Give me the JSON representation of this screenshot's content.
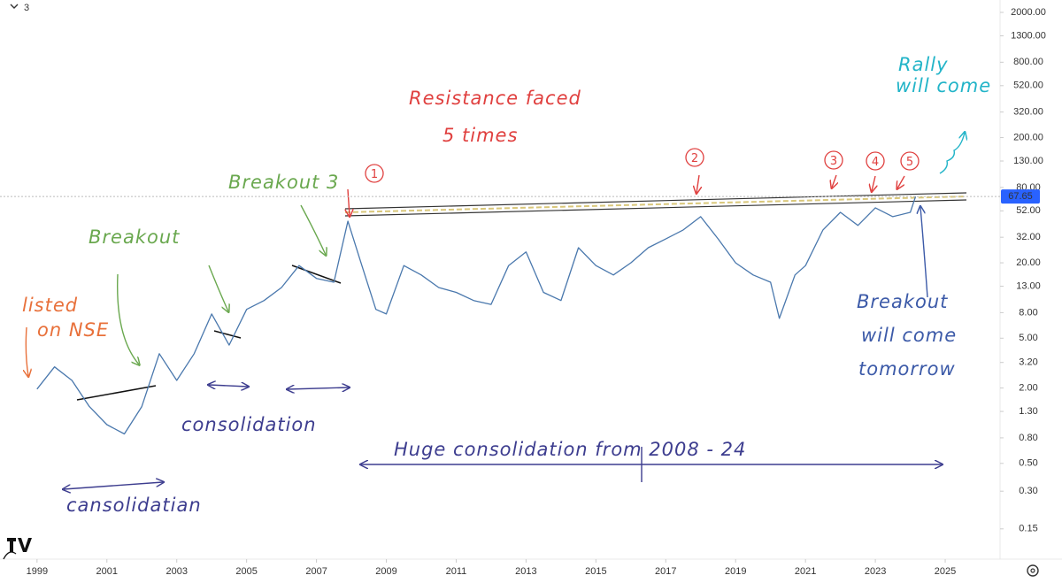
{
  "ui": {
    "interval_selector": "3"
  },
  "chart_data": {
    "type": "line",
    "log_scale": true,
    "x": [
      1999.0,
      1999.5,
      2000.0,
      2000.5,
      2001.0,
      2001.5,
      2002.0,
      2002.5,
      2003.0,
      2003.5,
      2004.0,
      2004.5,
      2005.0,
      2005.5,
      2006.0,
      2006.5,
      2007.0,
      2007.5,
      2007.9,
      2008.3,
      2008.7,
      2009.0,
      2009.5,
      2010.0,
      2010.5,
      2011.0,
      2011.5,
      2012.0,
      2012.5,
      2013.0,
      2013.5,
      2014.0,
      2014.5,
      2015.0,
      2015.5,
      2016.0,
      2016.5,
      2017.0,
      2017.5,
      2018.0,
      2018.5,
      2019.0,
      2019.5,
      2020.0,
      2020.25,
      2020.7,
      2021.0,
      2021.5,
      2022.0,
      2022.5,
      2023.0,
      2023.5,
      2024.0,
      2024.15
    ],
    "series": [
      {
        "color": "#4a78ad",
        "values": [
          1.96,
          2.95,
          2.3,
          1.42,
          1.02,
          0.86,
          1.42,
          3.76,
          2.3,
          3.76,
          7.8,
          4.4,
          8.5,
          10,
          12.7,
          19,
          15,
          14,
          43,
          19,
          8.5,
          7.8,
          19,
          16,
          12.7,
          11.6,
          10,
          9.3,
          19,
          24.4,
          11.6,
          10,
          26.4,
          19,
          16,
          20,
          26.4,
          31,
          36.6,
          46.7,
          31,
          20,
          16,
          14,
          7.2,
          16,
          19,
          36.6,
          50.6,
          39.8,
          55,
          46.7,
          50.6,
          67.65
        ]
      }
    ],
    "last_price": 67.65,
    "xlim": [
      1997.94,
      2026.57
    ],
    "xticks": [
      1999,
      2001,
      2003,
      2005,
      2007,
      2009,
      2011,
      2013,
      2015,
      2017,
      2019,
      2021,
      2023,
      2025
    ],
    "ylim": [
      0.086,
      2512
    ],
    "yticks": [
      {
        "value": 2000,
        "label": "2000.00"
      },
      {
        "value": 1300,
        "label": "1300.00"
      },
      {
        "value": 800,
        "label": "800.00"
      },
      {
        "value": 520,
        "label": "520.00"
      },
      {
        "value": 320,
        "label": "320.00"
      },
      {
        "value": 200,
        "label": "200.00"
      },
      {
        "value": 130,
        "label": "130.00"
      },
      {
        "value": 80,
        "label": "80.00"
      },
      {
        "value": 52,
        "label": "52.00"
      },
      {
        "value": 32,
        "label": "32.00"
      },
      {
        "value": 20,
        "label": "20.00"
      },
      {
        "value": 13,
        "label": "13.00"
      },
      {
        "value": 8,
        "label": "8.00"
      },
      {
        "value": 5,
        "label": "5.00"
      },
      {
        "value": 3.2,
        "label": "3.20"
      },
      {
        "value": 2,
        "label": "2.00"
      },
      {
        "value": 1.3,
        "label": "1.30"
      },
      {
        "value": 0.8,
        "label": "0.80"
      },
      {
        "value": 0.5,
        "label": "0.50"
      },
      {
        "value": 0.3,
        "label": "0.30"
      },
      0.15
    ],
    "annotations": [
      {
        "lines": [
          "Resistance faced",
          "5 times"
        ],
        "color": "#e0403f"
      },
      {
        "lines": [
          "Rally",
          "will come"
        ],
        "color": "#22b4c8"
      },
      {
        "lines": [
          "Breakout 3"
        ],
        "color": "#6aa84f"
      },
      {
        "lines": [
          "Breakout"
        ],
        "color": "#6aa84f"
      },
      {
        "lines": [
          "listed",
          "on NSE"
        ],
        "color": "#e8703a"
      },
      {
        "lines": [
          "consolidation"
        ],
        "color": "#3d3d8f"
      },
      {
        "lines": [
          "cansolidatian"
        ],
        "color": "#3d3d8f"
      },
      {
        "lines": [
          "Huge consolidation from 2008 - 24"
        ],
        "color": "#3d3d8f"
      },
      {
        "lines": [
          "Breakout",
          "will come",
          "tomorrow"
        ],
        "color": "#3c5aa8"
      },
      {
        "lines": [
          "1"
        ],
        "color": "#e0403f"
      },
      {
        "lines": [
          "2"
        ],
        "color": "#e0403f"
      },
      {
        "lines": [
          "3"
        ],
        "color": "#e0403f"
      },
      {
        "lines": [
          "4"
        ],
        "color": "#e0403f"
      },
      {
        "lines": [
          "5"
        ],
        "color": "#e0403f"
      }
    ]
  }
}
